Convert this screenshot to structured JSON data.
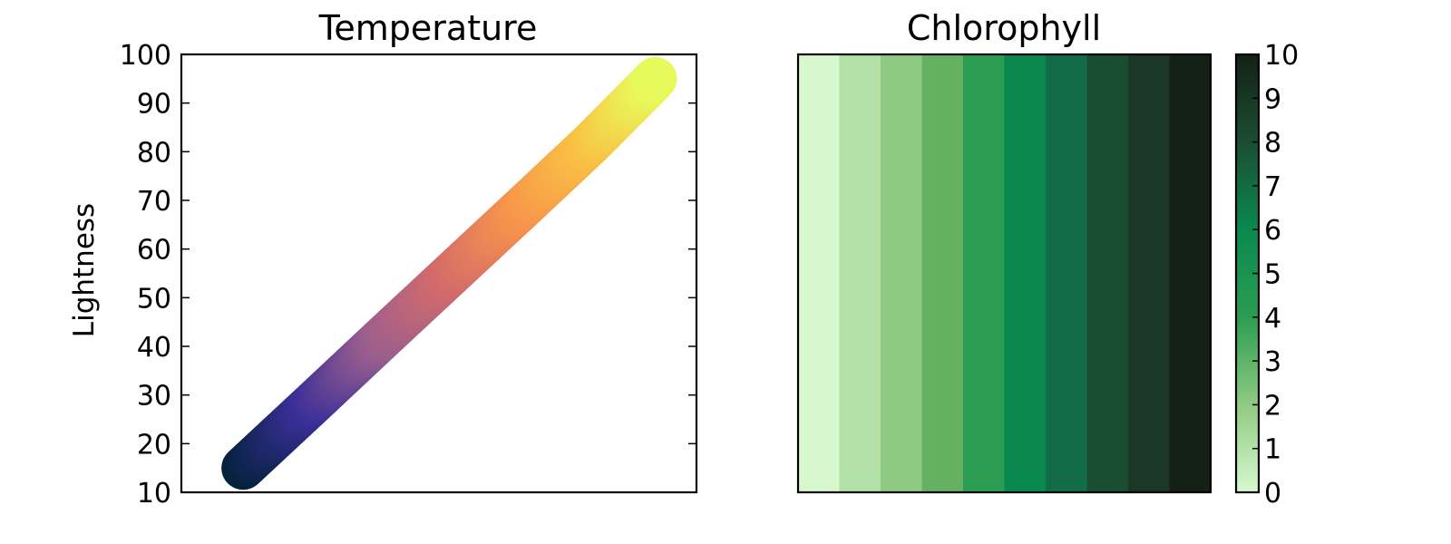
{
  "chart_data": [
    {
      "type": "scatter",
      "title": "Temperature",
      "xlabel": "",
      "ylabel": "Lightness",
      "ylim": [
        10,
        100
      ],
      "yticks": [
        "10",
        "20",
        "30",
        "40",
        "50",
        "60",
        "70",
        "80",
        "90",
        "100"
      ],
      "x": [
        0.12,
        0.255,
        0.39,
        0.525,
        0.66,
        0.795,
        0.92
      ],
      "y": [
        15,
        28.3,
        41.7,
        55,
        68.3,
        81.7,
        95
      ],
      "colormap": [
        "#03223b",
        "#3a2e98",
        "#9a5e8e",
        "#d26a6b",
        "#f7924c",
        "#f9c043",
        "#e8fa5b"
      ],
      "grid": false
    },
    {
      "type": "heatmap",
      "title": "Chlorophyll",
      "values": [
        0,
        1,
        2,
        3,
        4,
        5,
        6,
        7,
        8,
        9
      ],
      "colors": [
        "#d7f8cf",
        "#b2e0a6",
        "#8fca82",
        "#63b161",
        "#2b9d52",
        "#0a894f",
        "#126c48",
        "#1a4e33",
        "#1a3825",
        "#142117"
      ],
      "colorbar": {
        "ticks": [
          "0",
          "1",
          "2",
          "3",
          "4",
          "5",
          "6",
          "7",
          "8",
          "9",
          "10"
        ],
        "range": [
          0,
          10
        ]
      }
    }
  ]
}
